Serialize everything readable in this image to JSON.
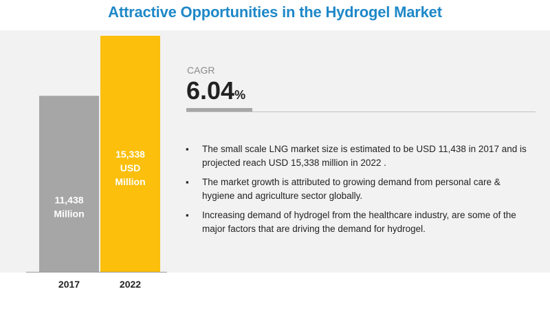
{
  "title": "Attractive Opportunities in the Hydrogel Market",
  "chart_data": {
    "type": "bar",
    "categories": [
      "2017",
      "2022"
    ],
    "values": [
      11438,
      15338
    ],
    "data_labels": [
      [
        "11,438",
        "Million"
      ],
      [
        "15,338",
        "USD",
        "Million"
      ]
    ],
    "colors": [
      "#a6a6a6",
      "#fbbf0c"
    ],
    "title": "Attractive Opportunities in the Hydrogel Market",
    "xlabel": "",
    "ylabel": "",
    "grid": false,
    "legend": "none"
  },
  "cagr": {
    "label": "CAGR",
    "value": "6.04",
    "unit": "%"
  },
  "bullets": [
    "The small scale LNG market size is estimated to be  USD 11,438 in 2017 and is projected reach USD 15,338 million in 2022  .",
    "The market growth is attributed to growing demand from personal care & hygiene and agriculture sector globally.",
    "Increasing demand of hydrogel from the healthcare industry, are some of the major factors that are driving the demand for hydrogel."
  ],
  "bullet_symbol": "▪"
}
